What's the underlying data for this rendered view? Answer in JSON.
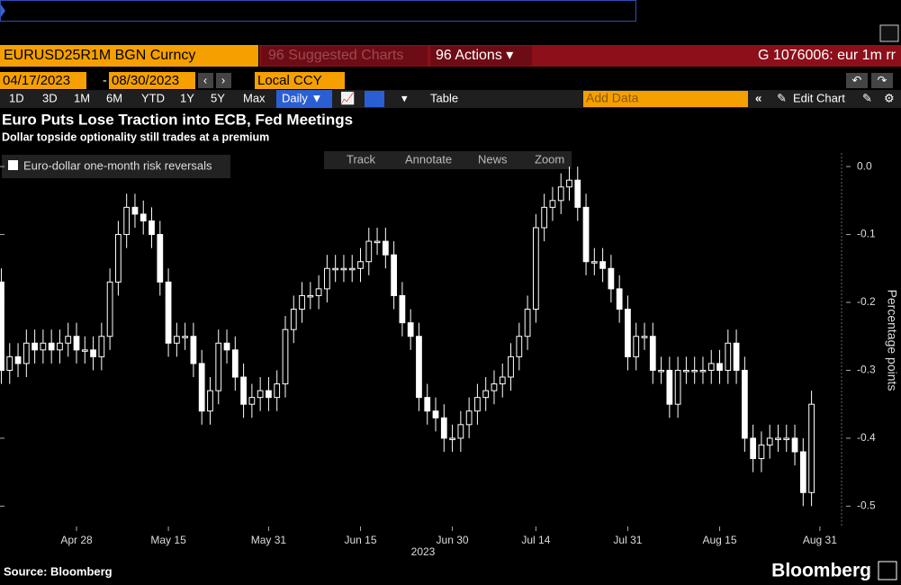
{
  "toolbar": {
    "security": "EURUSD25R1M BGN Curncy",
    "suggested": "96 Suggested Charts",
    "actions": "96 Actions ▾",
    "command": "G 1076006: eur 1m rr",
    "start_date": "04/17/2023",
    "date_sep": "-",
    "end_date": "08/30/2023",
    "currency": "Local CCY",
    "ranges": [
      "1D",
      "3D",
      "1M",
      "6M",
      "YTD",
      "1Y",
      "5Y",
      "Max"
    ],
    "frequency": "Daily ▼",
    "table": "Table",
    "add_data": "Add Data",
    "edit_chart": "Edit Chart",
    "tools": [
      "Track",
      "Annotate",
      "News",
      "Zoom"
    ]
  },
  "chart_data": {
    "type": "candlestick",
    "title": "Euro Puts Lose Traction into ECB, Fed Meetings",
    "subtitle": "Dollar topside optionality still trades at a premium",
    "ylabel": "Percentage points",
    "xlabel": "2023",
    "x": [
      0,
      1,
      2,
      3,
      4,
      5,
      6,
      7,
      8,
      9,
      10,
      11,
      12,
      13,
      14,
      15,
      16,
      17,
      18,
      19,
      20,
      21,
      22,
      23,
      24,
      25,
      26,
      27,
      28,
      29,
      30,
      31,
      32,
      33,
      34,
      35,
      36,
      37,
      38,
      39,
      40,
      41,
      42,
      43,
      44,
      45,
      46,
      47,
      48,
      49,
      50,
      51,
      52,
      53,
      54,
      55,
      56,
      57,
      58,
      59,
      60,
      61,
      62,
      63,
      64,
      65,
      66,
      67,
      68,
      69,
      70,
      71,
      72,
      73,
      74,
      75,
      76,
      77,
      78,
      79,
      80,
      81,
      82,
      83,
      84,
      85,
      86,
      87,
      88,
      89,
      90,
      91,
      92,
      93,
      94,
      95,
      96,
      97
    ],
    "xlim": [
      -0.16,
      100.6
    ],
    "xticks": [
      {
        "value": 9,
        "label": "Apr 28"
      },
      {
        "value": 20,
        "label": "May 15"
      },
      {
        "value": 32,
        "label": "May 31"
      },
      {
        "value": 43,
        "label": "Jun 15"
      },
      {
        "value": 54,
        "label": "Jun 30"
      },
      {
        "value": 64,
        "label": "Jul 14"
      },
      {
        "value": 75,
        "label": "Jul 31"
      },
      {
        "value": 86,
        "label": "Aug 15"
      },
      {
        "value": 98,
        "label": "Aug 31"
      }
    ],
    "ylim": [
      -0.53,
      0.02
    ],
    "yticks": [
      {
        "value": 0,
        "label": "0.0"
      },
      -0.1,
      -0.2,
      -0.3,
      -0.4,
      -0.5
    ],
    "series": [
      {
        "name": "Euro-dollar one-month risk reversals",
        "color": "#ffffff",
        "open": [
          -0.17,
          -0.3,
          -0.28,
          -0.29,
          -0.26,
          -0.27,
          -0.26,
          -0.27,
          -0.26,
          -0.25,
          -0.27,
          -0.27,
          -0.28,
          -0.25,
          -0.17,
          -0.1,
          -0.06,
          -0.07,
          -0.08,
          -0.1,
          -0.17,
          -0.26,
          -0.25,
          -0.25,
          -0.29,
          -0.36,
          -0.33,
          -0.26,
          -0.27,
          -0.31,
          -0.35,
          -0.34,
          -0.33,
          -0.34,
          -0.32,
          -0.24,
          -0.21,
          -0.19,
          -0.19,
          -0.18,
          -0.15,
          -0.15,
          -0.15,
          -0.15,
          -0.14,
          -0.11,
          -0.11,
          -0.13,
          -0.19,
          -0.23,
          -0.25,
          -0.34,
          -0.36,
          -0.37,
          -0.4,
          -0.4,
          -0.38,
          -0.36,
          -0.34,
          -0.33,
          -0.32,
          -0.31,
          -0.28,
          -0.25,
          -0.21,
          -0.09,
          -0.06,
          -0.05,
          -0.03,
          -0.02,
          -0.06,
          -0.14,
          -0.14,
          -0.15,
          -0.18,
          -0.21,
          -0.28,
          -0.25,
          -0.25,
          -0.3,
          -0.3,
          -0.35,
          -0.3,
          -0.3,
          -0.3,
          -0.3,
          -0.29,
          -0.3,
          -0.26,
          -0.3,
          -0.4,
          -0.43,
          -0.41,
          -0.4,
          -0.4,
          -0.4,
          -0.42,
          -0.48
        ],
        "high": [
          -0.15,
          -0.26,
          -0.26,
          -0.24,
          -0.24,
          -0.24,
          -0.24,
          -0.24,
          -0.23,
          -0.23,
          -0.25,
          -0.25,
          -0.23,
          -0.15,
          -0.08,
          -0.04,
          -0.04,
          -0.05,
          -0.06,
          -0.08,
          -0.15,
          -0.23,
          -0.23,
          -0.23,
          -0.27,
          -0.31,
          -0.24,
          -0.24,
          -0.25,
          -0.29,
          -0.32,
          -0.31,
          -0.31,
          -0.3,
          -0.22,
          -0.19,
          -0.17,
          -0.17,
          -0.16,
          -0.13,
          -0.13,
          -0.13,
          -0.13,
          -0.12,
          -0.09,
          -0.09,
          -0.09,
          -0.11,
          -0.17,
          -0.21,
          -0.23,
          -0.32,
          -0.34,
          -0.35,
          -0.38,
          -0.36,
          -0.34,
          -0.32,
          -0.31,
          -0.3,
          -0.29,
          -0.26,
          -0.23,
          -0.19,
          -0.07,
          -0.04,
          -0.03,
          -0.01,
          0.0,
          0.0,
          -0.04,
          -0.12,
          -0.12,
          -0.13,
          -0.16,
          -0.19,
          -0.23,
          -0.23,
          -0.23,
          -0.28,
          -0.28,
          -0.28,
          -0.28,
          -0.28,
          -0.28,
          -0.27,
          -0.27,
          -0.24,
          -0.24,
          -0.28,
          -0.38,
          -0.39,
          -0.38,
          -0.38,
          -0.38,
          -0.38,
          -0.4,
          -0.33
        ],
        "low": [
          -0.32,
          -0.32,
          -0.31,
          -0.31,
          -0.29,
          -0.29,
          -0.29,
          -0.29,
          -0.28,
          -0.29,
          -0.29,
          -0.3,
          -0.3,
          -0.27,
          -0.19,
          -0.12,
          -0.09,
          -0.1,
          -0.12,
          -0.19,
          -0.28,
          -0.28,
          -0.27,
          -0.31,
          -0.38,
          -0.38,
          -0.35,
          -0.29,
          -0.33,
          -0.37,
          -0.37,
          -0.36,
          -0.36,
          -0.36,
          -0.34,
          -0.26,
          -0.23,
          -0.21,
          -0.21,
          -0.2,
          -0.17,
          -0.17,
          -0.17,
          -0.17,
          -0.16,
          -0.13,
          -0.15,
          -0.21,
          -0.25,
          -0.27,
          -0.36,
          -0.38,
          -0.39,
          -0.42,
          -0.42,
          -0.42,
          -0.4,
          -0.38,
          -0.36,
          -0.35,
          -0.34,
          -0.33,
          -0.3,
          -0.27,
          -0.23,
          -0.11,
          -0.08,
          -0.07,
          -0.05,
          -0.08,
          -0.16,
          -0.16,
          -0.17,
          -0.2,
          -0.23,
          -0.3,
          -0.3,
          -0.27,
          -0.32,
          -0.32,
          -0.37,
          -0.37,
          -0.32,
          -0.32,
          -0.32,
          -0.32,
          -0.32,
          -0.32,
          -0.32,
          -0.42,
          -0.45,
          -0.45,
          -0.43,
          -0.42,
          -0.42,
          -0.44,
          -0.5,
          -0.5
        ],
        "close": [
          -0.3,
          -0.28,
          -0.29,
          -0.26,
          -0.27,
          -0.26,
          -0.27,
          -0.26,
          -0.25,
          -0.27,
          -0.27,
          -0.28,
          -0.25,
          -0.17,
          -0.1,
          -0.06,
          -0.07,
          -0.08,
          -0.1,
          -0.17,
          -0.26,
          -0.25,
          -0.25,
          -0.29,
          -0.36,
          -0.33,
          -0.26,
          -0.27,
          -0.31,
          -0.35,
          -0.34,
          -0.33,
          -0.34,
          -0.32,
          -0.24,
          -0.21,
          -0.19,
          -0.19,
          -0.18,
          -0.15,
          -0.15,
          -0.15,
          -0.15,
          -0.14,
          -0.11,
          -0.11,
          -0.13,
          -0.19,
          -0.23,
          -0.25,
          -0.34,
          -0.36,
          -0.37,
          -0.4,
          -0.4,
          -0.38,
          -0.36,
          -0.34,
          -0.33,
          -0.32,
          -0.31,
          -0.28,
          -0.25,
          -0.21,
          -0.09,
          -0.06,
          -0.05,
          -0.03,
          -0.02,
          -0.06,
          -0.14,
          -0.14,
          -0.15,
          -0.18,
          -0.21,
          -0.28,
          -0.25,
          -0.25,
          -0.3,
          -0.3,
          -0.35,
          -0.3,
          -0.3,
          -0.3,
          -0.3,
          -0.29,
          -0.3,
          -0.26,
          -0.3,
          -0.4,
          -0.43,
          -0.41,
          -0.4,
          -0.4,
          -0.4,
          -0.42,
          -0.48,
          -0.35
        ]
      }
    ]
  },
  "footer": {
    "source": "Source: Bloomberg",
    "brand": "Bloomberg"
  }
}
